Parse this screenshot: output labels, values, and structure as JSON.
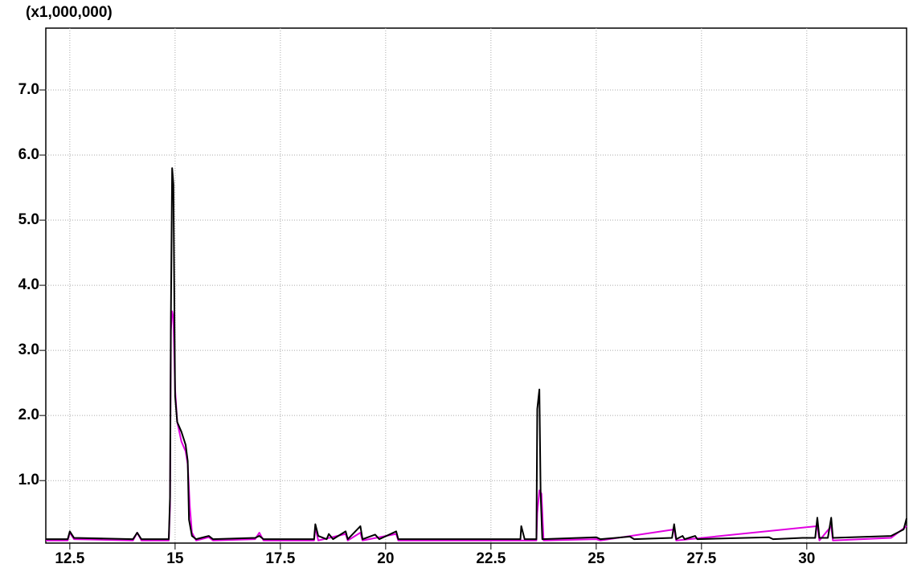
{
  "chart_data": {
    "type": "line",
    "y_axis_label": "(x1,000,000)",
    "xlim": [
      11.93,
      32.37
    ],
    "ylim": [
      0.04,
      7.95
    ],
    "grid": true,
    "xticks": [
      12.5,
      15.0,
      17.5,
      20.0,
      22.5,
      25.0,
      27.5,
      30.0
    ],
    "yticks": [
      {
        "value": 1,
        "label": "1.0"
      },
      {
        "value": 2,
        "label": "2.0"
      },
      {
        "value": 3,
        "label": "3.0"
      },
      {
        "value": 4,
        "label": "4.0"
      },
      {
        "value": 5,
        "label": "5.0"
      },
      {
        "value": 6,
        "label": "6.0"
      },
      {
        "value": 7,
        "label": "7.0"
      }
    ],
    "series": [
      {
        "color": "#e000e0",
        "x": [
          11.93,
          12.45,
          12.5,
          12.6,
          14.0,
          14.1,
          14.2,
          14.85,
          14.88,
          14.9,
          14.93,
          14.96,
          15.0,
          15.05,
          15.15,
          15.25,
          15.3,
          15.35,
          15.4,
          15.5,
          15.8,
          15.9,
          16.9,
          17.0,
          17.1,
          18.3,
          18.33,
          18.4,
          19.05,
          19.1,
          19.4,
          19.45,
          20.25,
          20.3,
          23.58,
          23.6,
          23.65,
          23.7,
          23.75,
          25.0,
          25.1,
          26.85,
          26.9,
          30.25,
          30.3,
          30.58,
          30.62,
          32.0,
          32.37
        ],
        "values": [
          0.08,
          0.08,
          0.2,
          0.1,
          0.08,
          0.2,
          0.08,
          0.08,
          0.6,
          3.3,
          3.6,
          3.5,
          2.4,
          1.9,
          1.6,
          1.45,
          1.25,
          0.6,
          0.2,
          0.08,
          0.13,
          0.08,
          0.1,
          0.2,
          0.08,
          0.08,
          0.28,
          0.08,
          0.18,
          0.08,
          0.2,
          0.08,
          0.18,
          0.08,
          0.08,
          0.5,
          0.85,
          0.8,
          0.08,
          0.1,
          0.08,
          0.25,
          0.08,
          0.3,
          0.08,
          0.3,
          0.08,
          0.12,
          0.3
        ]
      },
      {
        "color": "#000000",
        "x": [
          11.93,
          12.45,
          12.5,
          12.6,
          14.0,
          14.1,
          14.2,
          14.85,
          14.88,
          14.9,
          14.93,
          14.96,
          15.0,
          15.05,
          15.15,
          15.25,
          15.3,
          15.33,
          15.4,
          15.5,
          15.8,
          15.9,
          16.9,
          17.0,
          17.1,
          18.3,
          18.33,
          18.4,
          18.6,
          18.65,
          18.75,
          19.05,
          19.1,
          19.4,
          19.45,
          19.75,
          19.85,
          20.25,
          20.3,
          23.2,
          23.22,
          23.3,
          23.58,
          23.6,
          23.65,
          23.68,
          23.72,
          25.0,
          25.1,
          25.8,
          25.9,
          26.8,
          26.85,
          26.9,
          27.05,
          27.1,
          27.35,
          27.4,
          29.1,
          29.2,
          29.9,
          30.2,
          30.25,
          30.3,
          30.5,
          30.58,
          30.62,
          32.0,
          32.3,
          32.37
        ],
        "values": [
          0.1,
          0.1,
          0.22,
          0.12,
          0.1,
          0.2,
          0.1,
          0.1,
          0.75,
          3.5,
          5.8,
          5.55,
          2.3,
          1.9,
          1.75,
          1.55,
          1.3,
          0.4,
          0.15,
          0.1,
          0.15,
          0.1,
          0.12,
          0.15,
          0.1,
          0.1,
          0.33,
          0.15,
          0.1,
          0.18,
          0.1,
          0.22,
          0.1,
          0.3,
          0.1,
          0.17,
          0.1,
          0.22,
          0.1,
          0.1,
          0.3,
          0.1,
          0.1,
          2.1,
          2.4,
          0.8,
          0.1,
          0.13,
          0.1,
          0.14,
          0.1,
          0.12,
          0.33,
          0.1,
          0.15,
          0.1,
          0.15,
          0.1,
          0.13,
          0.1,
          0.12,
          0.12,
          0.43,
          0.12,
          0.12,
          0.43,
          0.12,
          0.15,
          0.25,
          0.42
        ]
      }
    ]
  }
}
